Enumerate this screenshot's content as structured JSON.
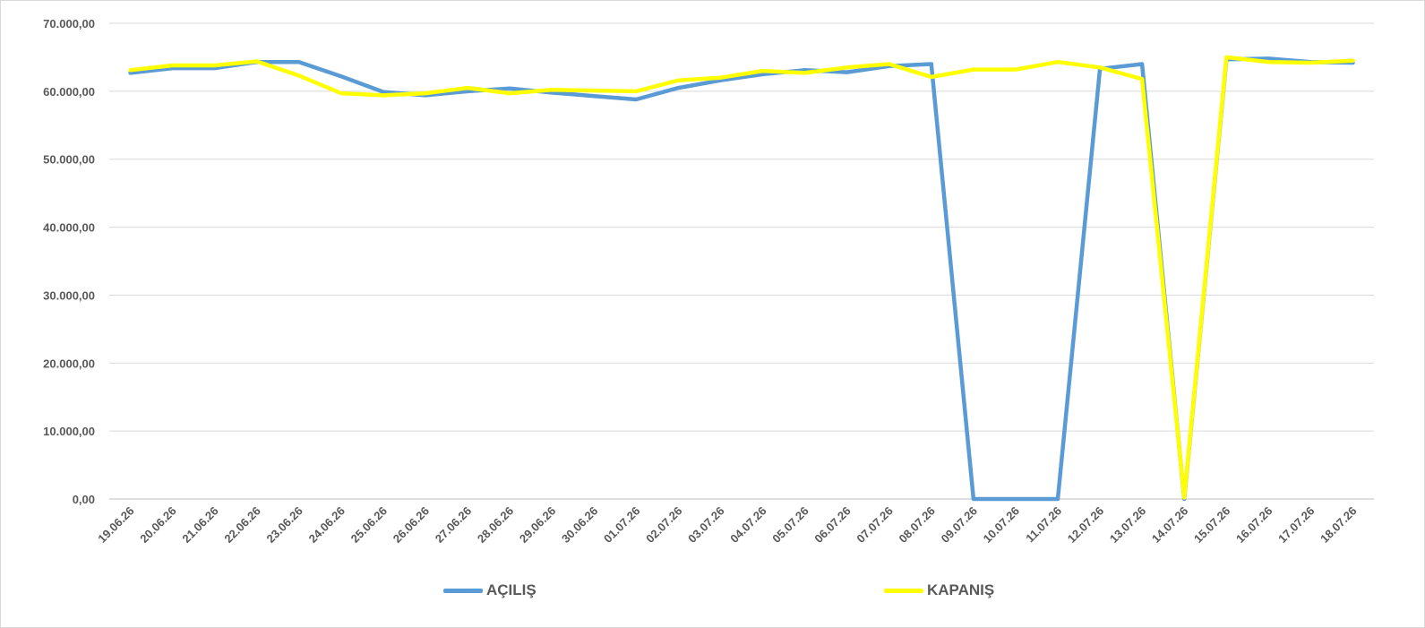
{
  "chart_data": {
    "type": "line",
    "title": "",
    "xlabel": "",
    "ylabel": "",
    "ylim": [
      0,
      70000
    ],
    "yticks": [
      0,
      10000,
      20000,
      30000,
      40000,
      50000,
      60000,
      70000
    ],
    "ytick_labels": [
      "0,00",
      "10.000,00",
      "20.000,00",
      "30.000,00",
      "40.000,00",
      "50.000,00",
      "60.000,00",
      "70.000,00"
    ],
    "grid": true,
    "legend_position": "bottom",
    "categories": [
      "19.06.26",
      "20.06.26",
      "21.06.26",
      "22.06.26",
      "23.06.26",
      "24.06.26",
      "25.06.26",
      "26.06.26",
      "27.06.26",
      "28.06.26",
      "29.06.26",
      "30.06.26",
      "01.07.26",
      "02.07.26",
      "03.07.26",
      "04.07.26",
      "05.07.26",
      "06.07.26",
      "07.07.26",
      "08.07.26",
      "09.07.26",
      "10.07.26",
      "11.07.26",
      "12.07.26",
      "13.07.26",
      "14.07.26",
      "15.07.26",
      "16.07.26",
      "17.07.26",
      "18.07.26"
    ],
    "series": [
      {
        "name": "AÇILIŞ",
        "color": "#5b9bd5",
        "values": [
          62700,
          63400,
          63400,
          64300,
          64300,
          62200,
          59900,
          59400,
          60000,
          60400,
          59800,
          59300,
          58800,
          60500,
          61600,
          62500,
          63100,
          62800,
          63700,
          64000,
          0,
          0,
          0,
          63300,
          64000,
          0,
          64700,
          64800,
          64300,
          64200
        ]
      },
      {
        "name": "KAPANIŞ",
        "color": "#ffff00",
        "values": [
          63100,
          63800,
          63800,
          64400,
          62300,
          59700,
          59400,
          59700,
          60500,
          59700,
          60200,
          60100,
          60000,
          61600,
          62000,
          63000,
          62700,
          63500,
          64000,
          62100,
          63200,
          63200,
          64300,
          63500,
          61800,
          200,
          65000,
          64300,
          64200,
          64500
        ]
      }
    ]
  }
}
